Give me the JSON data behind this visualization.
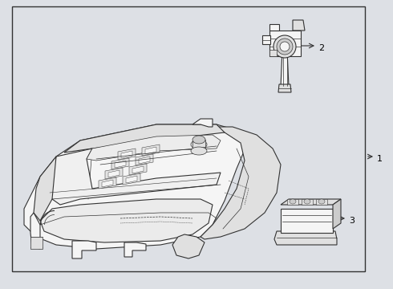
{
  "background_color": "#dde0e5",
  "border_color": "#333333",
  "line_color": "#333333",
  "label_color": "#000000",
  "fig_width": 4.9,
  "fig_height": 3.6,
  "dpi": 100,
  "face_color": "#f5f5f5",
  "shadow_color": "#e0e0e0",
  "dark_color": "#cccccc"
}
